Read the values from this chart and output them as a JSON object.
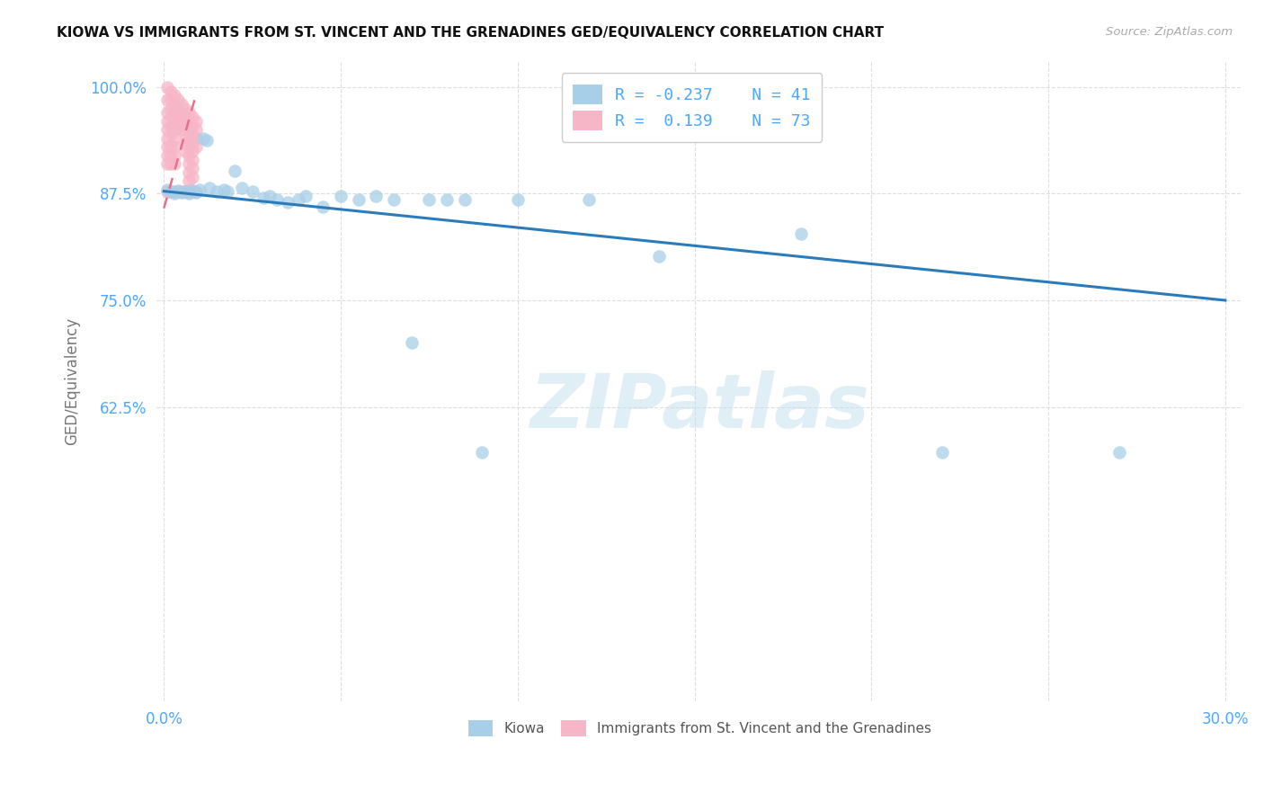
{
  "title": "KIOWA VS IMMIGRANTS FROM ST. VINCENT AND THE GRENADINES GED/EQUIVALENCY CORRELATION CHART",
  "source": "Source: ZipAtlas.com",
  "xlim": [
    -0.002,
    0.305
  ],
  "ylim": [
    0.28,
    1.03
  ],
  "ylabel": "GED/Equivalency",
  "kiowa_R": -0.237,
  "kiowa_N": 41,
  "svg_R": 0.139,
  "svg_N": 73,
  "kiowa_color": "#a8cfe8",
  "svg_color": "#f7b6c8",
  "kiowa_line_color": "#2b7bba",
  "svg_line_color": "#e8708a",
  "kiowa_label": "Kiowa",
  "svg_label": "Immigrants from St. Vincent and the Grenadines",
  "tick_color": "#4da6ff",
  "ylabel_color": "#777777",
  "grid_color": "#dddddd",
  "title_color": "#111111",
  "source_color": "#aaaaaa",
  "watermark": "ZIPatlas",
  "watermark_color": "#c8e0f0",
  "kiowa_x": [
    0.001,
    0.002,
    0.003,
    0.004,
    0.005,
    0.006,
    0.007,
    0.008,
    0.009,
    0.01,
    0.011,
    0.012,
    0.013,
    0.015,
    0.017,
    0.018,
    0.02,
    0.022,
    0.025,
    0.028,
    0.03,
    0.032,
    0.035,
    0.038,
    0.04,
    0.045,
    0.05,
    0.055,
    0.06,
    0.065,
    0.07,
    0.075,
    0.08,
    0.085,
    0.09,
    0.1,
    0.12,
    0.14,
    0.18,
    0.22,
    0.27
  ],
  "kiowa_y": [
    0.88,
    0.878,
    0.876,
    0.879,
    0.877,
    0.878,
    0.876,
    0.879,
    0.877,
    0.88,
    0.94,
    0.938,
    0.882,
    0.878,
    0.88,
    0.878,
    0.902,
    0.882,
    0.878,
    0.87,
    0.872,
    0.868,
    0.865,
    0.868,
    0.872,
    0.86,
    0.872,
    0.868,
    0.872,
    0.868,
    0.7,
    0.868,
    0.868,
    0.868,
    0.572,
    0.868,
    0.868,
    0.802,
    0.828,
    0.572,
    0.572
  ],
  "svg_x": [
    0.001,
    0.001,
    0.001,
    0.001,
    0.001,
    0.001,
    0.001,
    0.001,
    0.001,
    0.001,
    0.002,
    0.002,
    0.002,
    0.002,
    0.002,
    0.002,
    0.002,
    0.002,
    0.002,
    0.002,
    0.003,
    0.003,
    0.003,
    0.003,
    0.003,
    0.003,
    0.003,
    0.003,
    0.003,
    0.003,
    0.004,
    0.004,
    0.004,
    0.004,
    0.004,
    0.005,
    0.005,
    0.005,
    0.005,
    0.005,
    0.006,
    0.006,
    0.006,
    0.006,
    0.006,
    0.006,
    0.006,
    0.007,
    0.007,
    0.007,
    0.007,
    0.007,
    0.007,
    0.007,
    0.007,
    0.007,
    0.007,
    0.007,
    0.007,
    0.008,
    0.008,
    0.008,
    0.008,
    0.008,
    0.008,
    0.008,
    0.008,
    0.008,
    0.009,
    0.009,
    0.009,
    0.009,
    0.009
  ],
  "svg_y": [
    1.0,
    0.985,
    0.97,
    0.96,
    0.95,
    0.94,
    0.93,
    0.92,
    0.91,
    0.878,
    0.995,
    0.985,
    0.975,
    0.965,
    0.955,
    0.945,
    0.93,
    0.92,
    0.91,
    0.878,
    0.99,
    0.98,
    0.97,
    0.96,
    0.95,
    0.94,
    0.93,
    0.92,
    0.91,
    0.878,
    0.985,
    0.975,
    0.965,
    0.955,
    0.878,
    0.98,
    0.97,
    0.96,
    0.95,
    0.878,
    0.975,
    0.965,
    0.955,
    0.945,
    0.935,
    0.925,
    0.878,
    0.97,
    0.96,
    0.95,
    0.94,
    0.93,
    0.92,
    0.91,
    0.9,
    0.89,
    0.88,
    0.878,
    0.878,
    0.965,
    0.955,
    0.945,
    0.935,
    0.925,
    0.915,
    0.905,
    0.895,
    0.878,
    0.96,
    0.95,
    0.94,
    0.93,
    0.878
  ],
  "svg_line_x0": 0.0,
  "svg_line_x1": 0.009,
  "svg_line_y0": 0.858,
  "svg_line_y1": 0.99,
  "kiowa_line_x0": 0.0,
  "kiowa_line_x1": 0.3,
  "kiowa_line_y0": 0.878,
  "kiowa_line_y1": 0.75
}
